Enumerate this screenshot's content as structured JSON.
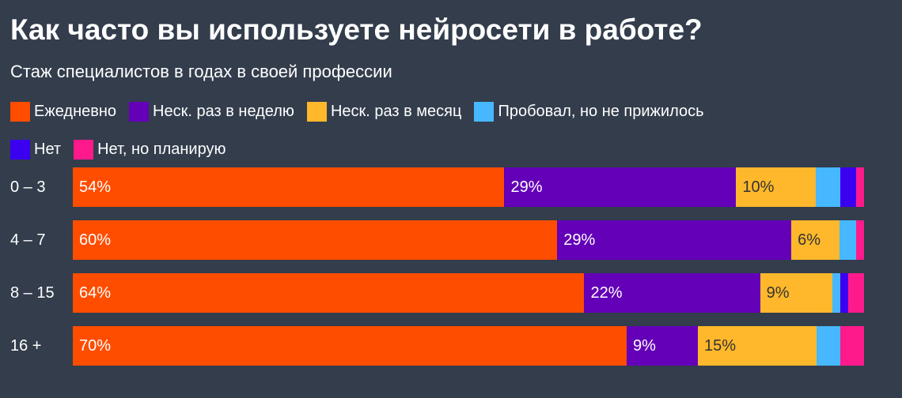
{
  "title": "Как часто вы используете нейросети в работе?",
  "subtitle": "Стаж специалистов в годах в своей профессии",
  "chart_data": {
    "type": "bar",
    "orientation": "horizontal",
    "stacked": true,
    "normalized_to": 100,
    "title": "Как часто вы используете нейросети в работе?",
    "subtitle": "Стаж специалистов в годах в своей профессии",
    "categories": [
      "0 – 3",
      "4 – 7",
      "8 – 15",
      "16 +"
    ],
    "legend_position": "top-left",
    "grid": false,
    "series": [
      {
        "name": "Ежедневно",
        "color": "#ff4d00",
        "label_color": "#ffffff",
        "values": [
          54,
          60,
          64,
          70
        ]
      },
      {
        "name": "Неск. раз в неделю",
        "color": "#6300b8",
        "label_color": "#ffffff",
        "values": [
          29,
          29,
          22,
          9
        ]
      },
      {
        "name": "Неск. раз в месяц",
        "color": "#ffb82b",
        "label_color": "#333333",
        "values": [
          10,
          6,
          9,
          15
        ]
      },
      {
        "name": "Пробовал, но не прижилось",
        "color": "#47b8ff",
        "label_color": "#333333",
        "values": [
          3,
          2,
          1,
          3
        ]
      },
      {
        "name": "Нет",
        "color": "#3b00f0",
        "label_color": "#ffffff",
        "values": [
          2,
          0,
          1,
          0
        ]
      },
      {
        "name": "Нет, но планирую",
        "color": "#ff1a8c",
        "label_color": "#ffffff",
        "values": [
          1,
          1,
          2,
          3
        ]
      }
    ],
    "data_labels": [
      [
        "54%",
        "29%",
        "10%",
        "",
        "",
        ""
      ],
      [
        "60%",
        "29%",
        "6%",
        "",
        "",
        ""
      ],
      [
        "64%",
        "22%",
        "9%",
        "",
        "",
        ""
      ],
      [
        "70%",
        "9%",
        "15%",
        "",
        "",
        ""
      ]
    ]
  }
}
